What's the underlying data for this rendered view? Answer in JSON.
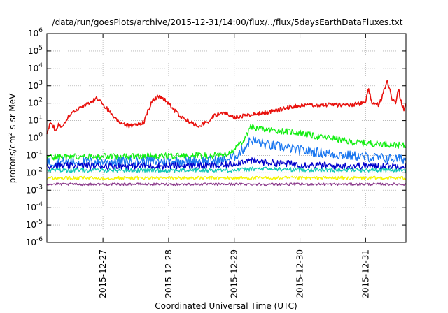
{
  "chart_data": {
    "type": "line",
    "title": "/data/run/goesPlots/archive/2015-12-31/14:00/flux/../flux/5daysEarthDataFluxes.txt",
    "xlabel": "Coordinated Universal Time (UTC)",
    "ylabel": {
      "prefix": "protons/cm",
      "sup": "2",
      "suffix": "-s-sr-MeV"
    },
    "y_scale": "log",
    "ylim": [
      1e-06,
      1000000.0
    ],
    "xlim": [
      "2015-12-26 03:30",
      "2015-12-31 14:45"
    ],
    "grid": true,
    "legend": "none",
    "x_ticks": [
      {
        "value": "2015-12-27 00:00",
        "label": "2015-12-27"
      },
      {
        "value": "2015-12-28 00:00",
        "label": "2015-12-28"
      },
      {
        "value": "2015-12-29 00:00",
        "label": "2015-12-29"
      },
      {
        "value": "2015-12-30 00:00",
        "label": "2015-12-30"
      },
      {
        "value": "2015-12-31 00:00",
        "label": "2015-12-31"
      }
    ],
    "y_ticks": [
      {
        "value": 1e-06,
        "base": "10",
        "exp": "-6"
      },
      {
        "value": 1e-05,
        "base": "10",
        "exp": "-5"
      },
      {
        "value": 0.0001,
        "base": "10",
        "exp": "-4"
      },
      {
        "value": 0.001,
        "base": "10",
        "exp": "-3"
      },
      {
        "value": 0.01,
        "base": "10",
        "exp": "-2"
      },
      {
        "value": 0.1,
        "base": "10",
        "exp": "-1"
      },
      {
        "value": 1,
        "base": "10",
        "exp": "0"
      },
      {
        "value": 10,
        "base": "10",
        "exp": "1"
      },
      {
        "value": 100,
        "base": "10",
        "exp": "2"
      },
      {
        "value": 1000,
        "base": "10",
        "exp": "3"
      },
      {
        "value": 10000,
        "base": "10",
        "exp": "4"
      },
      {
        "value": 100000,
        "base": "10",
        "exp": "5"
      },
      {
        "value": 1000000,
        "base": "10",
        "exp": "6"
      }
    ],
    "series": [
      {
        "color": "#e8110d",
        "noise": 0.12,
        "points": [
          [
            "2015-12-26 03:30",
            2
          ],
          [
            "2015-12-26 05:00",
            8
          ],
          [
            "2015-12-26 06:30",
            3
          ],
          [
            "2015-12-26 08:00",
            6
          ],
          [
            "2015-12-26 09:30",
            4
          ],
          [
            "2015-12-26 11:00",
            15
          ],
          [
            "2015-12-26 14:00",
            35
          ],
          [
            "2015-12-26 17:00",
            80
          ],
          [
            "2015-12-26 20:00",
            120
          ],
          [
            "2015-12-26 22:00",
            200
          ],
          [
            "2015-12-27 00:00",
            80
          ],
          [
            "2015-12-27 02:00",
            40
          ],
          [
            "2015-12-27 04:00",
            15
          ],
          [
            "2015-12-27 07:00",
            6
          ],
          [
            "2015-12-27 10:00",
            5
          ],
          [
            "2015-12-27 13:00",
            6
          ],
          [
            "2015-12-27 15:00",
            8
          ],
          [
            "2015-12-27 16:30",
            40
          ],
          [
            "2015-12-27 18:00",
            130
          ],
          [
            "2015-12-27 20:00",
            250
          ],
          [
            "2015-12-27 22:00",
            200
          ],
          [
            "2015-12-28 00:00",
            100
          ],
          [
            "2015-12-28 02:00",
            40
          ],
          [
            "2015-12-28 05:00",
            15
          ],
          [
            "2015-12-28 08:00",
            8
          ],
          [
            "2015-12-28 11:00",
            5
          ],
          [
            "2015-12-28 14:00",
            8
          ],
          [
            "2015-12-28 17:00",
            20
          ],
          [
            "2015-12-28 20:00",
            30
          ],
          [
            "2015-12-29 00:00",
            15
          ],
          [
            "2015-12-29 04:00",
            20
          ],
          [
            "2015-12-29 08:00",
            25
          ],
          [
            "2015-12-29 12:00",
            30
          ],
          [
            "2015-12-29 16:00",
            40
          ],
          [
            "2015-12-29 20:00",
            60
          ],
          [
            "2015-12-30 00:00",
            70
          ],
          [
            "2015-12-30 06:00",
            80
          ],
          [
            "2015-12-30 12:00",
            80
          ],
          [
            "2015-12-30 18:00",
            80
          ],
          [
            "2015-12-31 00:00",
            100
          ],
          [
            "2015-12-31 01:00",
            700
          ],
          [
            "2015-12-31 02:30",
            100
          ],
          [
            "2015-12-31 05:00",
            80
          ],
          [
            "2015-12-31 08:00",
            2000
          ],
          [
            "2015-12-31 09:30",
            200
          ],
          [
            "2015-12-31 11:00",
            100
          ],
          [
            "2015-12-31 12:00",
            700
          ],
          [
            "2015-12-31 13:00",
            120
          ],
          [
            "2015-12-31 14:00",
            40
          ],
          [
            "2015-12-31 14:45",
            100
          ]
        ]
      },
      {
        "color": "#11ee11",
        "noise": 0.18,
        "points": [
          [
            "2015-12-26 03:30",
            0.08
          ],
          [
            "2015-12-28 20:00",
            0.1
          ],
          [
            "2015-12-29 00:00",
            0.2
          ],
          [
            "2015-12-29 04:00",
            1
          ],
          [
            "2015-12-29 06:00",
            4
          ],
          [
            "2015-12-29 12:00",
            3
          ],
          [
            "2015-12-29 18:00",
            2.5
          ],
          [
            "2015-12-30 00:00",
            2
          ],
          [
            "2015-12-30 06:00",
            1.2
          ],
          [
            "2015-12-30 12:00",
            1
          ],
          [
            "2015-12-30 18:00",
            0.6
          ],
          [
            "2015-12-31 00:00",
            0.5
          ],
          [
            "2015-12-31 08:00",
            0.45
          ],
          [
            "2015-12-31 14:45",
            0.35
          ]
        ]
      },
      {
        "color": "#1a77f0",
        "noise": 0.28,
        "points": [
          [
            "2015-12-26 03:30",
            0.04
          ],
          [
            "2015-12-28 20:00",
            0.05
          ],
          [
            "2015-12-29 00:00",
            0.08
          ],
          [
            "2015-12-29 04:00",
            0.3
          ],
          [
            "2015-12-29 06:00",
            0.8
          ],
          [
            "2015-12-29 12:00",
            0.4
          ],
          [
            "2015-12-29 18:00",
            0.3
          ],
          [
            "2015-12-30 00:00",
            0.2
          ],
          [
            "2015-12-30 12:00",
            0.12
          ],
          [
            "2015-12-31 00:00",
            0.08
          ],
          [
            "2015-12-31 14:45",
            0.06
          ]
        ]
      },
      {
        "color": "#0000cc",
        "noise": 0.2,
        "points": [
          [
            "2015-12-26 03:30",
            0.025
          ],
          [
            "2015-12-28 20:00",
            0.025
          ],
          [
            "2015-12-29 00:00",
            0.035
          ],
          [
            "2015-12-29 04:00",
            0.05
          ],
          [
            "2015-12-29 12:00",
            0.04
          ],
          [
            "2015-12-30 00:00",
            0.03
          ],
          [
            "2015-12-30 12:00",
            0.025
          ],
          [
            "2015-12-31 14:45",
            0.025
          ]
        ]
      },
      {
        "color": "#12c8b4",
        "noise": 0.12,
        "points": [
          [
            "2015-12-26 03:30",
            0.014
          ],
          [
            "2015-12-29 00:00",
            0.014
          ],
          [
            "2015-12-29 08:00",
            0.017
          ],
          [
            "2015-12-30 00:00",
            0.015
          ],
          [
            "2015-12-31 14:45",
            0.014
          ]
        ]
      },
      {
        "color": "#f5f500",
        "noise": 0.1,
        "points": [
          [
            "2015-12-26 03:30",
            0.005
          ],
          [
            "2015-12-31 14:45",
            0.005
          ]
        ]
      },
      {
        "color": "#8b3a8b",
        "noise": 0.07,
        "points": [
          [
            "2015-12-26 03:30",
            0.0022
          ],
          [
            "2015-12-31 14:45",
            0.0022
          ]
        ]
      }
    ]
  }
}
